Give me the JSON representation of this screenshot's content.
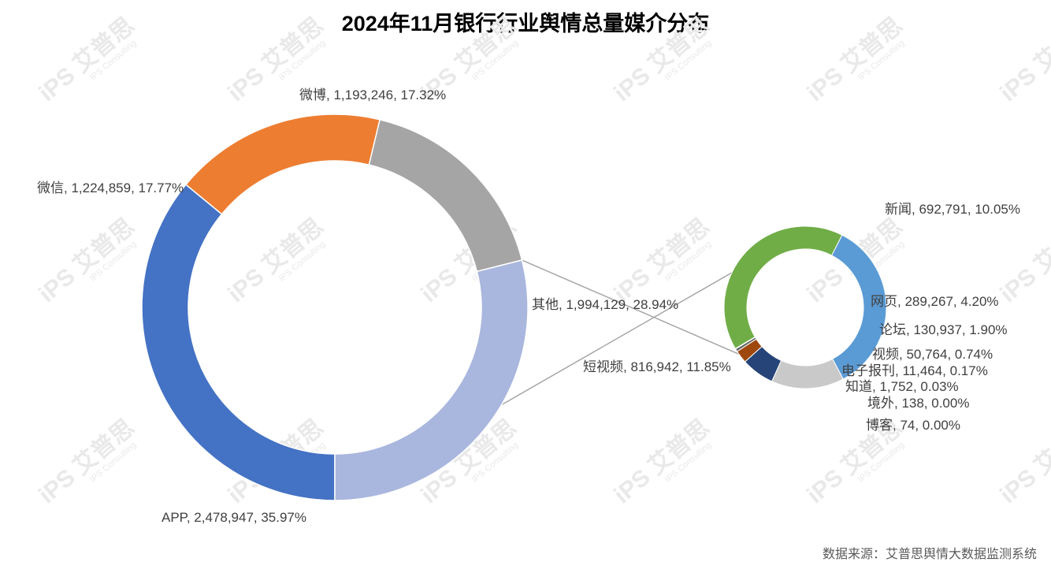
{
  "title": "2024年11月银行行业舆情总量媒介分布",
  "source_note": "数据来源：艾普思舆情大数据监测系统",
  "watermark": {
    "logo": "iPS",
    "brand": "艾普思",
    "sub": "IPS Consulting"
  },
  "chart_data": {
    "type": "pie-of-pie",
    "title": "2024年11月银行行业舆情总量媒介分布",
    "main": [
      {
        "label": "APP",
        "value": 2478947,
        "percent": "35.97%",
        "color": "#4472c4"
      },
      {
        "label": "微信",
        "value": 1224859,
        "percent": "17.77%",
        "color": "#ed7d31"
      },
      {
        "label": "微博",
        "value": 1193246,
        "percent": "17.32%",
        "color": "#a5a5a5"
      },
      {
        "label": "其他",
        "value": 1994129,
        "percent": "28.94%",
        "color": "#a9b6dd"
      }
    ],
    "secondary": [
      {
        "label": "新闻",
        "value": 692791,
        "percent": "10.05%",
        "color": "#5b9bd5"
      },
      {
        "label": "网页",
        "value": 289267,
        "percent": "4.20%",
        "color": "#c9c9c9"
      },
      {
        "label": "论坛",
        "value": 130937,
        "percent": "1.90%",
        "color": "#264478"
      },
      {
        "label": "视频",
        "value": 50764,
        "percent": "0.74%",
        "color": "#9e480e"
      },
      {
        "label": "电子报刊",
        "value": 11464,
        "percent": "0.17%",
        "color": "#636363"
      },
      {
        "label": "知道",
        "value": 1752,
        "percent": "0.03%",
        "color": "#997300"
      },
      {
        "label": "境外",
        "value": 138,
        "percent": "0.00%",
        "color": "#255e91"
      },
      {
        "label": "博客",
        "value": 74,
        "percent": "0.00%",
        "color": "#43682b"
      },
      {
        "label": "短视频",
        "value": 816942,
        "percent": "11.85%",
        "color": "#70ad47"
      }
    ]
  }
}
